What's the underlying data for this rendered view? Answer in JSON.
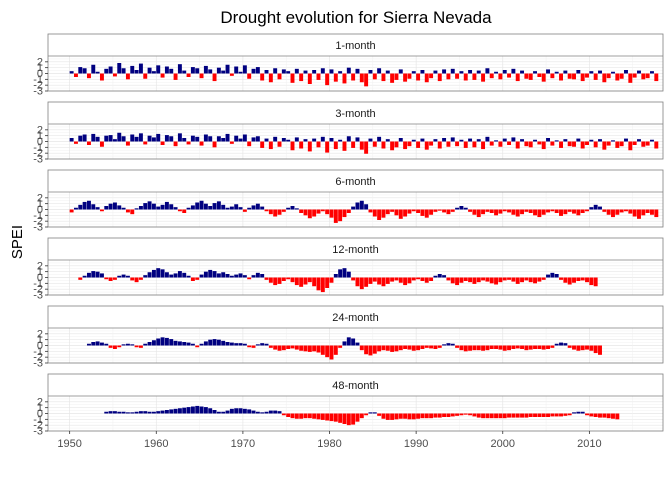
{
  "chart_data": {
    "type": "bar",
    "title": "Drought evolution for Sierra Nevada",
    "xlabel": "",
    "ylabel": "SPEI",
    "xlim": [
      1947.5,
      2018.5
    ],
    "ylim": [
      -3,
      3
    ],
    "x_ticks": [
      1950,
      1960,
      1970,
      1980,
      1990,
      2000,
      2010
    ],
    "y_ticks": [
      -3,
      -2,
      -1,
      0,
      1,
      2
    ],
    "y_tick_labels": [
      "-3",
      "-2",
      "-1",
      "0",
      "1",
      "2"
    ],
    "grid": true,
    "facet_bar_style": {
      "positive": "#000080",
      "negative": "#ff0000"
    },
    "step_years": 0.5,
    "panels": [
      {
        "label": "1-month",
        "x_start": 1950.0,
        "values": [
          0.4,
          -0.6,
          1.1,
          0.9,
          -0.8,
          1.5,
          0.3,
          -1.2,
          0.8,
          1.2,
          -0.5,
          1.8,
          0.9,
          -1.0,
          1.3,
          0.6,
          1.7,
          -0.9,
          1.0,
          0.4,
          1.4,
          -0.7,
          1.2,
          0.8,
          -1.1,
          1.6,
          0.5,
          -0.6,
          1.1,
          0.9,
          -0.8,
          1.3,
          0.7,
          -1.3,
          1.0,
          0.5,
          1.5,
          -0.4,
          1.2,
          0.3,
          1.4,
          -0.9,
          0.8,
          1.1,
          -1.2,
          0.6,
          -1.5,
          0.9,
          -1.0,
          0.7,
          0.4,
          -1.6,
          0.8,
          -1.3,
          0.5,
          -1.8,
          0.6,
          -1.1,
          0.9,
          -2.0,
          0.7,
          -1.4,
          0.4,
          -1.7,
          1.0,
          -1.2,
          0.8,
          -1.5,
          -2.2,
          0.6,
          -1.0,
          0.9,
          -1.3,
          0.5,
          -1.6,
          -1.1,
          0.7,
          -1.4,
          -0.9,
          0.4,
          -1.2,
          0.6,
          -1.5,
          -0.8,
          0.5,
          -1.3,
          0.7,
          -1.0,
          0.8,
          -0.9,
          0.4,
          -1.2,
          0.6,
          -1.1,
          0.5,
          -1.4,
          0.9,
          -0.8,
          0.3,
          -1.0,
          0.6,
          -0.7,
          0.8,
          -1.3,
          0.5,
          -0.9,
          -1.1,
          0.4,
          -0.6,
          -1.4,
          0.7,
          -0.8,
          0.3,
          -1.2,
          0.5,
          -0.9,
          -1.0,
          0.6,
          -1.3,
          -0.7,
          0.4,
          -1.1,
          0.5,
          -1.5,
          -0.8,
          0.3,
          -1.2,
          -0.9,
          0.6,
          -1.6,
          -0.7,
          0.5,
          -1.0,
          -0.8,
          0.4,
          -1.3
        ]
      },
      {
        "label": "3-month",
        "x_start": 1950.0,
        "values": [
          0.6,
          -0.4,
          1.0,
          1.2,
          -0.6,
          1.3,
          0.8,
          -0.9,
          1.0,
          1.1,
          0.4,
          1.5,
          0.9,
          -0.7,
          1.2,
          0.8,
          1.4,
          -0.5,
          1.0,
          0.7,
          1.3,
          -0.6,
          1.1,
          0.9,
          -0.8,
          1.4,
          0.6,
          -0.5,
          1.0,
          0.8,
          -0.7,
          1.2,
          0.9,
          -1.0,
          0.9,
          0.6,
          1.3,
          -0.4,
          1.0,
          0.5,
          1.2,
          -0.8,
          0.7,
          0.9,
          -1.1,
          0.5,
          -1.3,
          0.8,
          -0.9,
          0.6,
          0.3,
          -1.5,
          0.7,
          -1.2,
          0.4,
          -1.7,
          0.5,
          -1.0,
          0.8,
          -1.9,
          0.6,
          -1.3,
          0.3,
          -1.6,
          0.9,
          -1.1,
          0.7,
          -1.4,
          -2.1,
          0.5,
          -0.9,
          0.8,
          -1.2,
          0.4,
          -1.5,
          -1.0,
          0.6,
          -1.3,
          -0.8,
          0.3,
          -1.1,
          0.5,
          -1.4,
          -0.7,
          0.4,
          -1.2,
          0.6,
          -0.9,
          0.7,
          -0.8,
          0.3,
          -1.1,
          0.5,
          -1.0,
          0.4,
          -1.3,
          0.8,
          -0.7,
          0.2,
          -0.9,
          0.5,
          -0.6,
          0.7,
          -1.2,
          0.4,
          -0.8,
          -1.0,
          0.3,
          -0.5,
          -1.3,
          0.6,
          -0.7,
          0.2,
          -1.1,
          0.4,
          -0.8,
          -0.9,
          0.5,
          -1.2,
          -0.6,
          0.3,
          -1.0,
          0.4,
          -1.4,
          -0.7,
          0.2,
          -1.1,
          -0.8,
          0.5,
          -1.5,
          -0.6,
          0.4,
          -0.9,
          -0.7,
          0.3,
          -1.2
        ]
      },
      {
        "label": "6-month",
        "x_start": 1950.0,
        "values": [
          -0.5,
          0.3,
          0.8,
          1.3,
          1.5,
          0.9,
          0.4,
          -0.3,
          0.6,
          1.0,
          1.2,
          0.7,
          0.3,
          -0.5,
          -0.8,
          0.2,
          0.6,
          1.1,
          1.4,
          1.0,
          0.5,
          0.8,
          1.3,
          0.9,
          0.4,
          -0.3,
          -0.6,
          0.3,
          0.7,
          1.2,
          1.5,
          1.0,
          0.6,
          1.1,
          1.4,
          0.8,
          0.3,
          0.5,
          0.9,
          0.4,
          -0.4,
          0.3,
          0.7,
          1.0,
          0.5,
          -0.3,
          -0.8,
          -1.2,
          -0.9,
          -0.4,
          0.3,
          0.6,
          0.2,
          -0.6,
          -1.0,
          -1.5,
          -1.2,
          -0.7,
          -0.3,
          -0.8,
          -1.4,
          -2.3,
          -2.0,
          -1.3,
          -0.6,
          0.5,
          1.2,
          1.5,
          0.9,
          -0.5,
          -1.2,
          -1.8,
          -1.4,
          -0.8,
          -0.4,
          -1.0,
          -1.6,
          -1.2,
          -0.7,
          -0.3,
          -0.6,
          -1.1,
          -1.4,
          -0.9,
          -0.4,
          -0.2,
          -0.5,
          -0.8,
          -0.4,
          0.3,
          0.6,
          0.3,
          -0.4,
          -0.9,
          -1.3,
          -0.8,
          -0.4,
          -0.6,
          -1.0,
          -0.7,
          -0.3,
          -0.5,
          -0.9,
          -1.2,
          -0.8,
          -0.4,
          -0.6,
          -1.0,
          -1.3,
          -0.9,
          -0.5,
          -0.3,
          -0.6,
          -1.1,
          -0.8,
          -0.4,
          -0.7,
          -1.0,
          -0.6,
          -0.3,
          0.4,
          0.8,
          0.5,
          -0.4,
          -0.9,
          -1.3,
          -0.9,
          -0.5,
          -0.3,
          -0.7,
          -1.2,
          -1.6,
          -1.0,
          -0.6,
          -0.9,
          -1.3
        ]
      },
      {
        "label": "12-month",
        "x_start": 1951.0,
        "values": [
          -0.4,
          0.3,
          0.8,
          1.1,
          1.0,
          0.7,
          -0.3,
          -0.6,
          -0.4,
          0.3,
          0.5,
          0.3,
          -0.5,
          -0.8,
          -0.4,
          0.4,
          0.9,
          1.3,
          1.6,
          1.4,
          0.9,
          0.5,
          0.7,
          1.1,
          0.8,
          0.3,
          -0.6,
          -0.4,
          0.5,
          1.0,
          1.3,
          1.1,
          0.7,
          0.9,
          0.6,
          0.3,
          0.5,
          0.7,
          0.4,
          -0.3,
          0.4,
          0.8,
          0.6,
          -0.4,
          -0.9,
          -1.3,
          -1.1,
          -0.6,
          -0.3,
          -0.8,
          -1.3,
          -1.6,
          -1.2,
          -0.8,
          -1.5,
          -2.2,
          -2.5,
          -1.8,
          -0.9,
          0.6,
          1.4,
          1.6,
          1.0,
          -0.5,
          -1.5,
          -2.0,
          -1.6,
          -1.1,
          -0.7,
          -1.2,
          -1.5,
          -1.1,
          -0.7,
          -0.5,
          -0.9,
          -1.3,
          -1.0,
          -0.5,
          -0.3,
          -0.6,
          -0.9,
          -0.6,
          0.3,
          0.6,
          0.4,
          -0.5,
          -1.0,
          -1.3,
          -0.9,
          -0.6,
          -0.8,
          -1.1,
          -0.8,
          -0.5,
          -0.7,
          -1.0,
          -1.2,
          -0.8,
          -0.5,
          -0.4,
          -0.7,
          -1.1,
          -0.8,
          -0.5,
          -0.8,
          -1.0,
          -0.7,
          -0.4,
          0.5,
          0.8,
          0.6,
          -0.4,
          -0.9,
          -1.2,
          -0.9,
          -0.6,
          -0.5,
          -0.8,
          -1.3,
          -1.5
        ]
      },
      {
        "label": "24-month",
        "x_start": 1952.0,
        "values": [
          0.3,
          0.6,
          0.7,
          0.5,
          0.3,
          -0.4,
          -0.6,
          -0.3,
          0.2,
          0.3,
          0.2,
          -0.3,
          -0.4,
          0.3,
          0.6,
          0.9,
          1.2,
          1.4,
          1.3,
          1.1,
          0.8,
          0.7,
          0.6,
          0.5,
          0.3,
          -0.3,
          0.3,
          0.7,
          1.0,
          1.1,
          1.0,
          0.8,
          0.6,
          0.5,
          0.4,
          0.4,
          0.3,
          -0.3,
          -0.4,
          0.2,
          0.4,
          0.3,
          -0.4,
          -0.7,
          -0.9,
          -0.8,
          -0.6,
          -0.5,
          -0.7,
          -0.9,
          -1.0,
          -1.1,
          -1.0,
          -1.2,
          -1.6,
          -2.0,
          -2.4,
          -1.6,
          -0.4,
          0.7,
          1.4,
          1.2,
          0.5,
          -0.8,
          -1.5,
          -1.7,
          -1.4,
          -1.0,
          -0.8,
          -0.9,
          -1.1,
          -1.0,
          -0.8,
          -0.6,
          -0.7,
          -0.9,
          -0.8,
          -0.6,
          -0.4,
          -0.5,
          -0.6,
          -0.4,
          0.2,
          0.4,
          0.3,
          -0.4,
          -0.8,
          -1.0,
          -0.9,
          -0.8,
          -0.8,
          -0.9,
          -0.8,
          -0.6,
          -0.6,
          -0.7,
          -0.9,
          -0.8,
          -0.6,
          -0.5,
          -0.6,
          -0.8,
          -0.7,
          -0.6,
          -0.6,
          -0.7,
          -0.6,
          -0.4,
          0.3,
          0.5,
          0.4,
          -0.4,
          -0.7,
          -0.9,
          -0.8,
          -0.7,
          -0.9,
          -1.3,
          -1.6
        ]
      },
      {
        "label": "48-month",
        "x_start": 1954.0,
        "values": [
          0.3,
          0.4,
          0.4,
          0.3,
          0.3,
          0.2,
          0.2,
          0.3,
          0.4,
          0.4,
          0.3,
          0.3,
          0.4,
          0.5,
          0.6,
          0.7,
          0.8,
          0.9,
          1.0,
          1.1,
          1.2,
          1.3,
          1.2,
          1.1,
          0.9,
          0.6,
          0.3,
          0.3,
          0.5,
          0.8,
          0.9,
          0.9,
          0.8,
          0.7,
          0.5,
          0.3,
          0.2,
          0.3,
          0.5,
          0.5,
          0.4,
          -0.3,
          -0.6,
          -0.8,
          -0.9,
          -0.9,
          -0.8,
          -0.8,
          -0.9,
          -1.0,
          -1.1,
          -1.2,
          -1.3,
          -1.4,
          -1.6,
          -1.8,
          -2.0,
          -1.9,
          -1.4,
          -0.8,
          -0.3,
          0.2,
          0.2,
          -0.4,
          -0.9,
          -1.1,
          -1.1,
          -1.0,
          -0.9,
          -0.9,
          -1.0,
          -1.0,
          -0.9,
          -0.8,
          -0.8,
          -0.8,
          -0.7,
          -0.7,
          -0.6,
          -0.6,
          -0.5,
          -0.4,
          -0.3,
          -0.2,
          -0.3,
          -0.5,
          -0.7,
          -0.8,
          -0.8,
          -0.8,
          -0.8,
          -0.8,
          -0.8,
          -0.7,
          -0.7,
          -0.7,
          -0.7,
          -0.7,
          -0.6,
          -0.6,
          -0.6,
          -0.6,
          -0.6,
          -0.5,
          -0.5,
          -0.5,
          -0.4,
          -0.3,
          0.2,
          0.3,
          0.3,
          -0.3,
          -0.5,
          -0.6,
          -0.7,
          -0.7,
          -0.8,
          -0.9,
          -1.0
        ]
      }
    ]
  }
}
